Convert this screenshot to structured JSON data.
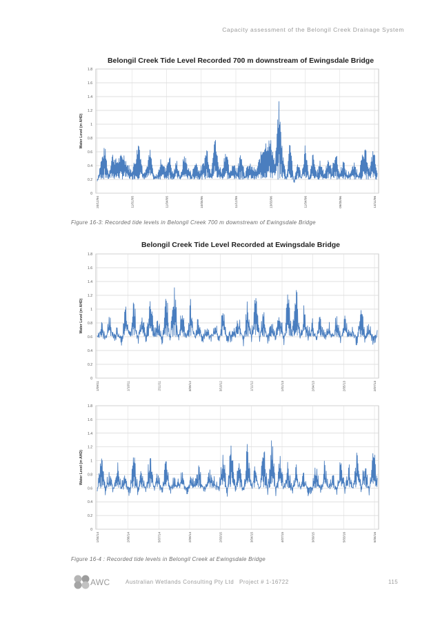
{
  "header": {
    "doc_title": "Capacity assessment of the Belongil Creek Drainage System"
  },
  "figures": [
    {
      "caption": "Figure 16-3: Recorded tide levels in Belongil Creek 700 m downstream of Ewingsdale Bridge"
    },
    {
      "caption": "Figure 16-4 : Recorded tide levels in Belongil Creek at Ewingsdale Bridge"
    }
  ],
  "footer": {
    "logo_text": "AWC",
    "company": "Australian Wetlands Consulting Pty Ltd",
    "project": "Project # 1-16722",
    "page": "115"
  },
  "chart_data": [
    {
      "type": "line",
      "title": "Belongil Creek Tide Level Recorded 700 m downstream of Ewingsdale Bridge",
      "ylabel": "Water Level (m AHD)",
      "xlabel": "",
      "ylim": [
        0,
        1.8
      ],
      "yticks": [
        "0",
        "0.2",
        "0.4",
        "0.6",
        "0.8",
        "1",
        "1.2",
        "1.4",
        "1.6",
        "1.8"
      ],
      "xticks": [
        "20/12/94",
        "11/01/95",
        "11/04/95",
        "10/05/95",
        "11/12/95",
        "13/03/96",
        "11/04/96",
        "09/05/96",
        "13/11/96"
      ],
      "grid": true,
      "color": "#4a7ebf",
      "series": [
        {
          "values": [
            0.2,
            0.5,
            0.7,
            0.3,
            0.6,
            0.5,
            0.55,
            0.6,
            0.45,
            0.35,
            0.5,
            0.8,
            0.35,
            0.4,
            0.65,
            0.25,
            0.3,
            0.55,
            0.35,
            0.6,
            0.3,
            0.5,
            0.25,
            0.6,
            0.4,
            0.3,
            0.5,
            0.35,
            0.45,
            0.7,
            0.3,
            0.9,
            0.45,
            0.35,
            0.7,
            0.3,
            0.5,
            0.35,
            0.65,
            0.3,
            0.45,
            0.4,
            0.35,
            0.55,
            0.75,
            0.8,
            0.78,
            0.45,
            1.35,
            0.6,
            0.25,
            0.85,
            0.15,
            0.5,
            0.25,
            0.75,
            0.2,
            0.6,
            0.3,
            0.5,
            0.3,
            0.55,
            0.35,
            0.65,
            0.3,
            0.5,
            0.3,
            0.35,
            0.45,
            0.3,
            0.55,
            0.65,
            0.35,
            0.7,
            0.3
          ]
        }
      ]
    },
    {
      "type": "line",
      "title": "Belongil Creek Tide Level Recorded at Ewingsdale Bridge",
      "ylabel": "Water Level (m AHD)",
      "xlabel": "",
      "ylim": [
        0,
        1.8
      ],
      "yticks": [
        "0",
        "0.2",
        "0.4",
        "0.6",
        "0.8",
        "1",
        "1.2",
        "1.4",
        "1.6",
        "1.8"
      ],
      "xticks": [
        "1/09/11",
        "1/10/11",
        "2/11/11",
        "3/09/12",
        "3/10/12",
        "1/11/12",
        "1/01/13",
        "2/04/13",
        "2/05/13",
        "2/07/13"
      ],
      "grid": true,
      "color": "#4a7ebf",
      "series": [
        {
          "values": [
            0.65,
            0.9,
            0.6,
            1.0,
            0.65,
            0.8,
            0.6,
            1.1,
            0.7,
            1.25,
            0.6,
            1.0,
            0.65,
            1.2,
            0.75,
            0.9,
            0.6,
            1.35,
            0.65,
            1.4,
            0.7,
            1.1,
            0.6,
            1.2,
            0.7,
            0.95,
            0.6,
            0.8,
            0.65,
            0.9,
            0.6,
            1.1,
            0.65,
            0.7,
            0.75,
            1.0,
            0.6,
            1.2,
            0.65,
            1.3,
            0.7,
            1.05,
            0.6,
            0.9,
            0.7,
            1.1,
            0.6,
            1.3,
            0.65,
            1.45,
            0.6,
            1.1,
            0.7,
            0.9,
            0.6,
            1.0,
            0.7,
            0.85,
            0.65,
            1.05,
            0.6,
            0.95,
            0.7,
            0.8,
            0.6,
            1.15,
            0.65,
            0.9,
            0.6,
            0.75
          ]
        }
      ]
    },
    {
      "type": "line",
      "title": "",
      "ylabel": "Water Level (m AHD)",
      "xlabel": "",
      "ylim": [
        0,
        1.8
      ],
      "yticks": [
        "0",
        "0.2",
        "0.4",
        "0.6",
        "0.8",
        "1",
        "1.2",
        "1.4",
        "1.6",
        "1.8"
      ],
      "xticks": [
        "1/04/14",
        "2/06/14",
        "5/07/14",
        "2/09/14",
        "2/03/15",
        "3/04/15",
        "4/07/15",
        "3/09/15",
        "5/03/16",
        "5/05/16"
      ],
      "grid": true,
      "color": "#4a7ebf",
      "series": [
        {
          "values": [
            0.6,
            1.2,
            0.65,
            0.9,
            0.6,
            1.0,
            0.7,
            0.85,
            0.6,
            1.15,
            0.65,
            0.95,
            0.6,
            1.2,
            0.7,
            0.9,
            0.6,
            1.1,
            0.65,
            0.8,
            0.75,
            0.9,
            0.6,
            0.85,
            0.7,
            1.0,
            0.65,
            0.8,
            0.9,
            0.75,
            0.65,
            1.2,
            0.6,
            1.35,
            0.65,
            1.1,
            0.6,
            1.3,
            0.7,
            1.1,
            0.6,
            1.35,
            0.65,
            1.4,
            0.6,
            1.2,
            0.65,
            1.1,
            0.6,
            1.0,
            0.65,
            0.9,
            0.6,
            0.7,
            1.0,
            0.6,
            1.05,
            0.65,
            0.9,
            0.6,
            1.1,
            0.65,
            1.0,
            0.6,
            1.15,
            0.7,
            1.1,
            0.6,
            1.3,
            0.75
          ]
        }
      ]
    }
  ]
}
